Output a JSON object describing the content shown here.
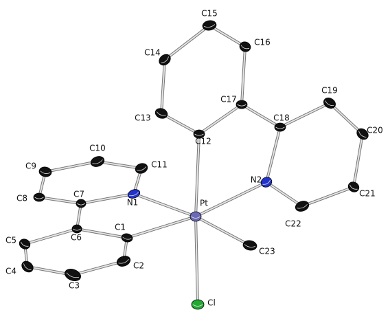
{
  "nodes": [
    {
      "label": "C15"
    },
    {
      "label": "C16"
    },
    {
      "label": "C14"
    },
    {
      "label": "C17"
    },
    {
      "label": "C19"
    },
    {
      "label": "C18"
    },
    {
      "label": "C13"
    },
    {
      "label": "C12"
    },
    {
      "label": "C20"
    },
    {
      "label": "C10"
    },
    {
      "label": "C11"
    },
    {
      "label": "C9"
    },
    {
      "label": "N2"
    },
    {
      "label": "C21"
    },
    {
      "label": "C8"
    },
    {
      "label": "C7"
    },
    {
      "label": "N1"
    },
    {
      "label": "Pt"
    },
    {
      "label": "C22"
    },
    {
      "label": "C6"
    },
    {
      "label": "C1"
    },
    {
      "label": "C23"
    },
    {
      "label": "C5"
    },
    {
      "label": "C2"
    },
    {
      "label": "C4"
    },
    {
      "label": "C3"
    },
    {
      "label": "Cl"
    }
  ]
}
